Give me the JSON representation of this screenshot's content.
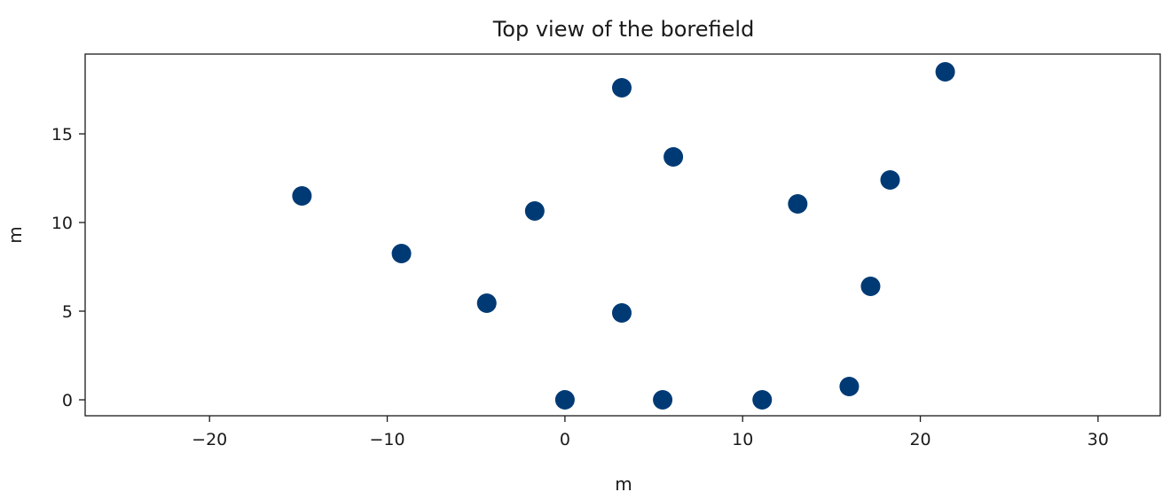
{
  "chart_data": {
    "type": "scatter",
    "title": "Top view of the borefield",
    "xlabel": "m",
    "ylabel": "m",
    "xlim": [
      -27,
      33.5
    ],
    "ylim": [
      -0.9,
      19.5
    ],
    "xticks": [
      -20,
      -10,
      0,
      10,
      20,
      30
    ],
    "yticks": [
      0,
      5,
      10,
      15
    ],
    "xtick_labels": [
      "−20",
      "−10",
      "0",
      "10",
      "20",
      "30"
    ],
    "ytick_labels": [
      "0",
      "5",
      "10",
      "15"
    ],
    "grid": false,
    "marker_color": "#003a75",
    "points": [
      {
        "x": 0.0,
        "y": 0.0
      },
      {
        "x": 5.5,
        "y": 0.0
      },
      {
        "x": 11.1,
        "y": 0.0
      },
      {
        "x": 16.0,
        "y": 0.75
      },
      {
        "x": 17.2,
        "y": 6.4
      },
      {
        "x": 18.3,
        "y": 12.4
      },
      {
        "x": 21.4,
        "y": 18.5
      },
      {
        "x": 13.1,
        "y": 11.05
      },
      {
        "x": 6.1,
        "y": 13.7
      },
      {
        "x": 3.2,
        "y": 17.6
      },
      {
        "x": 3.2,
        "y": 4.9
      },
      {
        "x": -1.7,
        "y": 10.65
      },
      {
        "x": -4.4,
        "y": 5.45
      },
      {
        "x": -9.2,
        "y": 8.25
      },
      {
        "x": -14.8,
        "y": 11.5
      }
    ]
  }
}
